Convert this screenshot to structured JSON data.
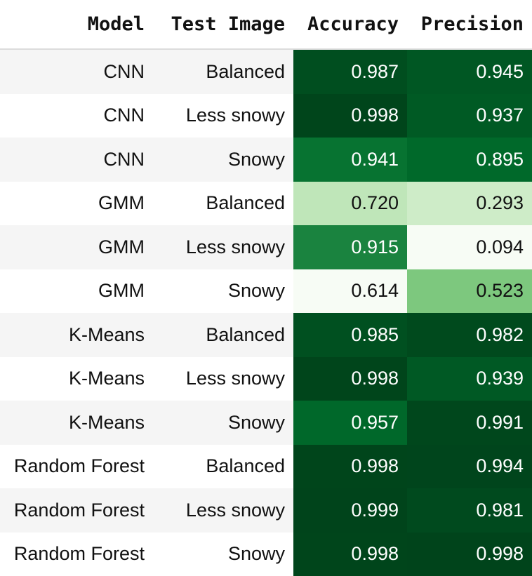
{
  "chart_data": {
    "type": "table",
    "columns": [
      "Model",
      "Test Image",
      "Accuracy",
      "Precision"
    ],
    "rows": [
      {
        "model": "CNN",
        "test_image": "Balanced",
        "accuracy": "0.987",
        "precision": "0.945"
      },
      {
        "model": "CNN",
        "test_image": "Less snowy",
        "accuracy": "0.998",
        "precision": "0.937"
      },
      {
        "model": "CNN",
        "test_image": "Snowy",
        "accuracy": "0.941",
        "precision": "0.895"
      },
      {
        "model": "GMM",
        "test_image": "Balanced",
        "accuracy": "0.720",
        "precision": "0.293"
      },
      {
        "model": "GMM",
        "test_image": "Less snowy",
        "accuracy": "0.915",
        "precision": "0.094"
      },
      {
        "model": "GMM",
        "test_image": "Snowy",
        "accuracy": "0.614",
        "precision": "0.523"
      },
      {
        "model": "K-Means",
        "test_image": "Balanced",
        "accuracy": "0.985",
        "precision": "0.982"
      },
      {
        "model": "K-Means",
        "test_image": "Less snowy",
        "accuracy": "0.998",
        "precision": "0.939"
      },
      {
        "model": "K-Means",
        "test_image": "Snowy",
        "accuracy": "0.957",
        "precision": "0.991"
      },
      {
        "model": "Random Forest",
        "test_image": "Balanced",
        "accuracy": "0.998",
        "precision": "0.994"
      },
      {
        "model": "Random Forest",
        "test_image": "Less snowy",
        "accuracy": "0.999",
        "precision": "0.981"
      },
      {
        "model": "Random Forest",
        "test_image": "Snowy",
        "accuracy": "0.998",
        "precision": "0.998"
      }
    ],
    "colormap": {
      "name": "Greens",
      "low": "#f7fcf5",
      "high": "#00441b",
      "dark_text": "#111111",
      "light_text": "#ffffff"
    }
  }
}
